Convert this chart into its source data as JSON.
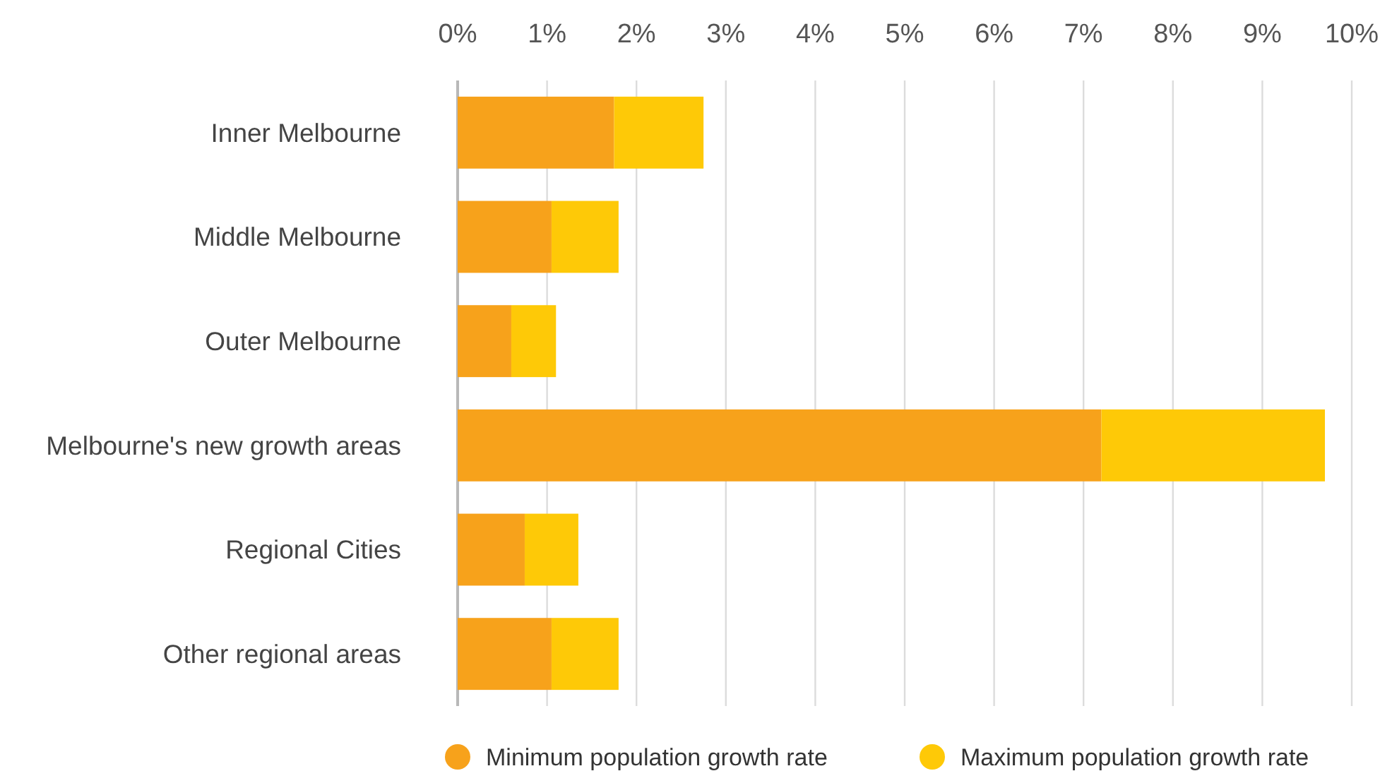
{
  "chart_data": {
    "type": "bar",
    "orientation": "horizontal",
    "stacked": true,
    "categories": [
      "Inner Melbourne",
      "Middle Melbourne",
      "Outer Melbourne",
      "Melbourne's new growth areas",
      "Regional Cities",
      "Other regional areas"
    ],
    "series": [
      {
        "name": "Minimum population growth rate",
        "color": "#f7a21b",
        "values": [
          1.75,
          1.05,
          0.6,
          7.2,
          0.75,
          1.05
        ]
      },
      {
        "name": "Maximum population growth rate",
        "color": "#fec907",
        "values": [
          1.0,
          0.75,
          0.5,
          2.5,
          0.6,
          0.75
        ]
      }
    ],
    "xlim": [
      0,
      10
    ],
    "xticks": [
      {
        "value": 0,
        "label": "0%"
      },
      {
        "value": 1,
        "label": "1%"
      },
      {
        "value": 2,
        "label": "2%"
      },
      {
        "value": 3,
        "label": "3%"
      },
      {
        "value": 4,
        "label": "4%"
      },
      {
        "value": 5,
        "label": "5%"
      },
      {
        "value": 6,
        "label": "6%"
      },
      {
        "value": 7,
        "label": "7%"
      },
      {
        "value": 8,
        "label": "8%"
      },
      {
        "value": 9,
        "label": "9%"
      },
      {
        "value": 10,
        "label": "10%"
      }
    ],
    "grid": "x",
    "legend": "bottom",
    "marker": "circle"
  }
}
